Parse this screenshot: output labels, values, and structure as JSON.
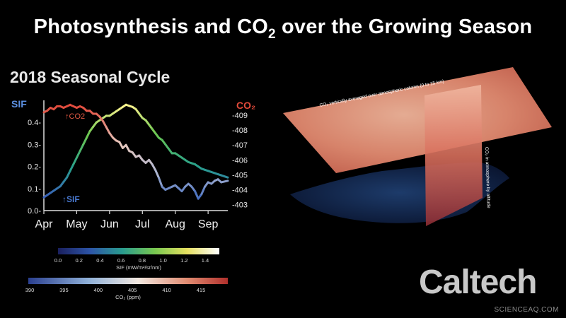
{
  "title": {
    "main": "Photosynthesis and CO",
    "sub": "2",
    "rest": " over the Growing Season"
  },
  "logo": "Caltech",
  "credit": "SCIENCEAQ.COM",
  "scene": {
    "plane_label": "CO₂ vertically averaged over atmospheric column (0 to 15 km)",
    "wall_label": "CO₂ in atmosphere by altitude"
  },
  "colorbars": {
    "sif": {
      "ticks": [
        "0.0",
        "0.2",
        "0.4",
        "0.6",
        "0.8",
        "1.0",
        "1.2",
        "1.4"
      ],
      "label": "SIF (mW/m²/sr/nm)"
    },
    "co2": {
      "ticks": [
        "390",
        "395",
        "400",
        "405",
        "410",
        "415"
      ],
      "label": "CO₂ (ppm)"
    }
  },
  "chart_data": {
    "type": "line",
    "title": "2018 Seasonal Cycle",
    "left_axis": {
      "label": "SIF",
      "ticks": [
        "0.0-",
        "0.1-",
        "0.2-",
        "0.3-",
        "0.4-"
      ],
      "range": [
        0,
        0.5
      ]
    },
    "right_axis": {
      "label": "CO₂",
      "ticks": [
        "-403",
        "-404",
        "-405",
        "-406",
        "-407",
        "-408",
        "-409"
      ],
      "range": [
        402.6,
        410
      ]
    },
    "x_ticks": [
      "Apr",
      "May",
      "Jun",
      "Jul",
      "Aug",
      "Sep"
    ],
    "colors": {
      "sif_axis": "#5b8fe0",
      "co2_axis": "#e34a3a",
      "sif_line": "#4878cf",
      "co2_line": "#e65a45"
    },
    "series": [
      {
        "name": "↑SIF",
        "axis": "left",
        "x": [
          0,
          0.1,
          0.2,
          0.3,
          0.4,
          0.5,
          0.6,
          0.7,
          0.8,
          0.9,
          1,
          1.1,
          1.2,
          1.3,
          1.4,
          1.5,
          1.6,
          1.7,
          1.8,
          1.9,
          2,
          2.1,
          2.2,
          2.3,
          2.4,
          2.5,
          2.6,
          2.7,
          2.8,
          2.9,
          3,
          3.1,
          3.2,
          3.3,
          3.4,
          3.5,
          3.6,
          3.7,
          3.8,
          3.9,
          4,
          4.1,
          4.2,
          4.3,
          4.4,
          4.5,
          4.6,
          4.7,
          4.8,
          4.9,
          5,
          5.1,
          5.2,
          5.3,
          5.4,
          5.6
        ],
        "y": [
          0.06,
          0.07,
          0.08,
          0.09,
          0.1,
          0.11,
          0.13,
          0.15,
          0.18,
          0.21,
          0.24,
          0.27,
          0.3,
          0.33,
          0.36,
          0.38,
          0.4,
          0.41,
          0.42,
          0.43,
          0.43,
          0.44,
          0.45,
          0.46,
          0.47,
          0.48,
          0.475,
          0.47,
          0.46,
          0.44,
          0.42,
          0.41,
          0.39,
          0.37,
          0.35,
          0.33,
          0.32,
          0.3,
          0.28,
          0.26,
          0.26,
          0.25,
          0.24,
          0.23,
          0.22,
          0.215,
          0.21,
          0.2,
          0.19,
          0.185,
          0.18,
          0.175,
          0.17,
          0.165,
          0.16,
          0.15
        ]
      },
      {
        "name": "↑CO2",
        "axis": "right",
        "x": [
          0,
          0.1,
          0.2,
          0.3,
          0.4,
          0.5,
          0.6,
          0.7,
          0.8,
          0.9,
          1,
          1.1,
          1.2,
          1.3,
          1.4,
          1.5,
          1.6,
          1.7,
          1.8,
          1.9,
          2,
          2.1,
          2.2,
          2.3,
          2.4,
          2.5,
          2.6,
          2.7,
          2.8,
          2.9,
          3,
          3.1,
          3.2,
          3.3,
          3.4,
          3.5,
          3.6,
          3.7,
          3.8,
          3.9,
          4,
          4.1,
          4.2,
          4.3,
          4.4,
          4.5,
          4.6,
          4.7,
          4.8,
          4.9,
          5,
          5.1,
          5.2,
          5.3,
          5.4,
          5.6
        ],
        "y": [
          409.2,
          409.3,
          409.5,
          409.4,
          409.6,
          409.6,
          409.5,
          409.6,
          409.7,
          409.6,
          409.5,
          409.6,
          409.5,
          409.3,
          409.3,
          409.1,
          409.1,
          408.9,
          408.6,
          408.2,
          407.8,
          407.5,
          407.3,
          407.2,
          406.8,
          407,
          406.6,
          406.5,
          406.2,
          406.3,
          406,
          405.8,
          406,
          405.7,
          405.3,
          404.8,
          404.2,
          404.0,
          404.1,
          404.2,
          404.3,
          404.1,
          403.9,
          404.2,
          404.4,
          404.2,
          403.9,
          403.4,
          403.7,
          404.2,
          404.5,
          404.4,
          404.6,
          404.7,
          404.5,
          404.6
        ]
      }
    ]
  }
}
